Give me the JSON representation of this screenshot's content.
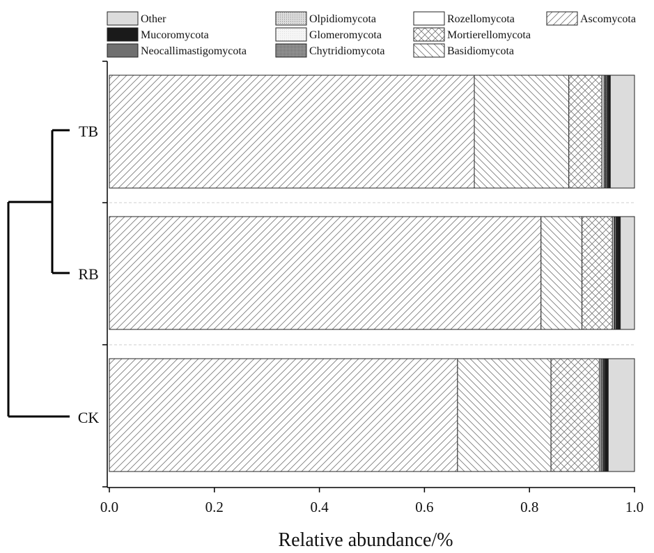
{
  "chart_data": {
    "type": "bar",
    "orientation": "horizontal",
    "stacked": true,
    "xlabel": "Relative abundance/%",
    "ylabel": "",
    "xlim": [
      0,
      1
    ],
    "xticks": [
      "0.0",
      "0.2",
      "0.4",
      "0.6",
      "0.8",
      "1.0"
    ],
    "categories": [
      "TB",
      "RB",
      "CK"
    ],
    "dendrogram": "CK joins cluster of (TB, RB)",
    "legend_position": "top",
    "series": [
      {
        "name": "Ascomycota",
        "pattern": "diagonal-hatch",
        "values": [
          0.695,
          0.822,
          0.663
        ]
      },
      {
        "name": "Basidiomycota",
        "pattern": "back-diagonal-hatch",
        "values": [
          0.18,
          0.078,
          0.178
        ]
      },
      {
        "name": "Mortierellomycota",
        "pattern": "crosshatch",
        "values": [
          0.063,
          0.058,
          0.092
        ]
      },
      {
        "name": "Rozellomycota",
        "pattern": "white",
        "values": [
          0.004,
          0.003,
          0.003
        ]
      },
      {
        "name": "Chytridiomycota",
        "pattern": "dense-dots",
        "values": [
          0.003,
          0.002,
          0.003
        ]
      },
      {
        "name": "Glomeromycota",
        "pattern": "light-fine",
        "values": [
          0.002,
          0.002,
          0.002
        ]
      },
      {
        "name": "Olpidiomycota",
        "pattern": "fine-dots",
        "values": [
          0.001,
          0.001,
          0.001
        ]
      },
      {
        "name": "Neocallimastigomycota",
        "pattern": "dark-gray",
        "values": [
          0.002,
          0.001,
          0.002
        ]
      },
      {
        "name": "Mucoromycota",
        "pattern": "black",
        "values": [
          0.004,
          0.006,
          0.006
        ]
      },
      {
        "name": "Other",
        "pattern": "light-gray",
        "values": [
          0.046,
          0.027,
          0.05
        ]
      }
    ],
    "legend": [
      [
        "Other",
        "Olpidiomycota",
        "Rozellomycota",
        "Ascomycota"
      ],
      [
        "Mucoromycota",
        "Glomeromycota",
        "Mortierellomycota"
      ],
      [
        "Neocallimastigomycota",
        "Chytridiomycota",
        "Basidiomycota"
      ]
    ]
  }
}
